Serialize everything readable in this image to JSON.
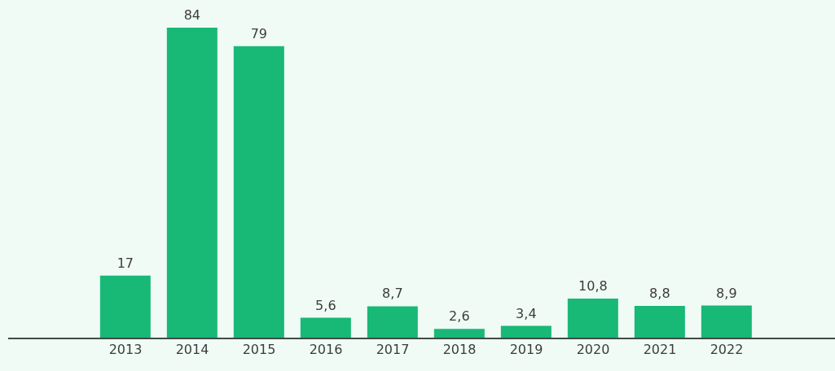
{
  "chart_data": {
    "type": "bar",
    "categories": [
      "2013",
      "2014",
      "2015",
      "2016",
      "2017",
      "2018",
      "2019",
      "2020",
      "2021",
      "2022"
    ],
    "values": [
      17,
      84,
      79,
      5.6,
      8.7,
      2.6,
      3.4,
      10.8,
      8.8,
      8.9
    ],
    "value_labels": [
      "17",
      "84",
      "79",
      "5,6",
      "8,7",
      "2,6",
      "3,4",
      "10,8",
      "8,8",
      "8,9"
    ],
    "color": "#18b877",
    "grid": false,
    "legend": false
  }
}
